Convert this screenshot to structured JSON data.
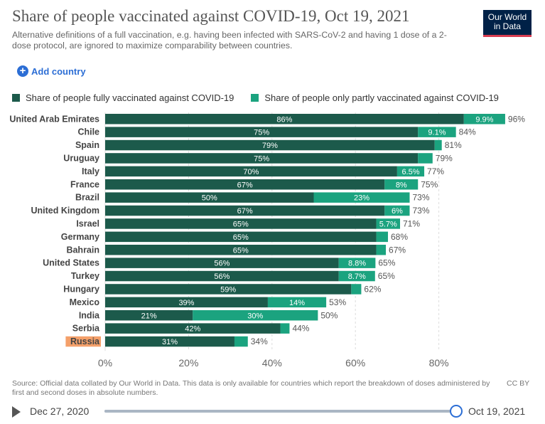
{
  "header": {
    "title": "Share of people vaccinated against COVID-19, Oct 19, 2021",
    "subtitle": "Alternative definitions of a full vaccination, e.g. having been infected with SARS-CoV-2 and having 1 dose of a 2-dose protocol, are ignored to maximize comparability between countries.",
    "logo_line1": "Our World",
    "logo_line2": "in Data"
  },
  "controls": {
    "add_country_label": "Add country",
    "add_icon": "+"
  },
  "colors": {
    "fully": "#1c5a4b",
    "partly": "#1ba37f",
    "highlight": "#f4a06a",
    "grid": "#dddddd",
    "accent": "#2c6ed5"
  },
  "chart_data": {
    "type": "bar",
    "orientation": "horizontal",
    "stacked": true,
    "categories": [
      "United Arab Emirates",
      "Chile",
      "Spain",
      "Uruguay",
      "Italy",
      "France",
      "Brazil",
      "United Kingdom",
      "Israel",
      "Germany",
      "Bahrain",
      "United States",
      "Turkey",
      "Hungary",
      "Mexico",
      "India",
      "Serbia",
      "Russia"
    ],
    "highlighted_category": "Russia",
    "series": [
      {
        "name": "Share of people fully vaccinated against COVID-19",
        "values": [
          86,
          75,
          79,
          75,
          70,
          67,
          50,
          67,
          65,
          65,
          65,
          56,
          56,
          59,
          39,
          21,
          42,
          31
        ],
        "labels": [
          "86%",
          "75%",
          "79%",
          "75%",
          "70%",
          "67%",
          "50%",
          "67%",
          "65%",
          "65%",
          "65%",
          "56%",
          "56%",
          "59%",
          "39%",
          "21%",
          "42%",
          "31%"
        ]
      },
      {
        "name": "Share of people only partly vaccinated against COVID-19",
        "values": [
          9.9,
          9.1,
          1.7,
          3.5,
          6.5,
          8,
          23,
          6,
          5.7,
          2.8,
          2.3,
          8.8,
          8.7,
          2.4,
          14,
          30,
          2.2,
          3.2
        ],
        "labels": [
          "9.9%",
          "9.1%",
          "",
          "",
          "6.5%",
          "8%",
          "23%",
          "6%",
          "5.7%",
          "",
          "",
          "8.8%",
          "8.7%",
          "",
          "14%",
          "30%",
          "",
          ""
        ]
      }
    ],
    "totals": [
      "96%",
      "84%",
      "81%",
      "79%",
      "77%",
      "75%",
      "73%",
      "73%",
      "71%",
      "68%",
      "67%",
      "65%",
      "65%",
      "62%",
      "53%",
      "50%",
      "44%",
      "34%"
    ],
    "xlim": [
      0,
      100
    ],
    "xticks": [
      0,
      20,
      40,
      60,
      80
    ],
    "xtick_labels": [
      "0%",
      "20%",
      "40%",
      "60%",
      "80%"
    ],
    "grid": true,
    "legend_position": "top"
  },
  "footer": {
    "source": "Source: Official data collated by Our World in Data. This data is only available for countries which report the breakdown of doses administered by first and second doses in absolute numbers.",
    "license": "CC BY"
  },
  "timeline": {
    "start_label": "Dec 27, 2020",
    "end_label": "Oct 19, 2021",
    "progress": 1.0
  }
}
